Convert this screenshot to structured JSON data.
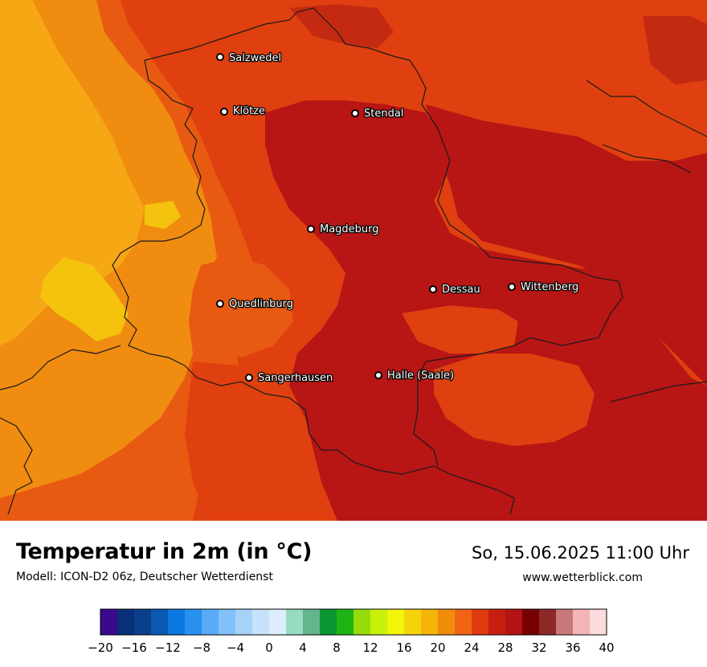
{
  "map": {
    "colors": {
      "c12": "#f08c10",
      "c14": "#f5a714",
      "c16": "#f5c20e",
      "c22": "#e85a12",
      "c24": "#e0400f",
      "c26": "#c42a12",
      "c28": "#b81515",
      "border": "#1a1a1a"
    },
    "cities": [
      {
        "name": "Salzwedel"
      },
      {
        "name": "Klötze"
      },
      {
        "name": "Stendal"
      },
      {
        "name": "Magdeburg"
      },
      {
        "name": "Dessau"
      },
      {
        "name": "Wittenberg"
      },
      {
        "name": "Quedlinburg"
      },
      {
        "name": "Sangerhausen"
      },
      {
        "name": "Halle (Saale)"
      }
    ]
  },
  "footer": {
    "title": "Temperatur in 2m (in °C)",
    "model": "Modell: ICON-D2 06z, Deutscher Wetterdienst",
    "datetime": "So, 15.06.2025 11:00 Uhr",
    "website": "www.wetterblick.com"
  },
  "legend": {
    "min": -20,
    "max": 40,
    "step": 2,
    "colors": [
      "#3b0a8c",
      "#0a2f7a",
      "#0a3f8c",
      "#0a5ab4",
      "#0a78e0",
      "#2891f0",
      "#5aaaf5",
      "#82c0fa",
      "#a6d2fa",
      "#c6e2fa",
      "#dceefc",
      "#96dcbe",
      "#64b48c",
      "#0a9632",
      "#1eb414",
      "#96dc0a",
      "#c8f00a",
      "#f0f50a",
      "#f5d20a",
      "#f5b40a",
      "#f08c0a",
      "#f06414",
      "#e03c10",
      "#c81e10",
      "#b41414",
      "#780000",
      "#8c2828",
      "#c87878",
      "#f5b4b4",
      "#fadcdc"
    ],
    "tick_labels": [
      "−20",
      "−16",
      "−12",
      "−8",
      "−4",
      "0",
      "4",
      "8",
      "12",
      "16",
      "20",
      "24",
      "28",
      "32",
      "36",
      "40"
    ]
  }
}
